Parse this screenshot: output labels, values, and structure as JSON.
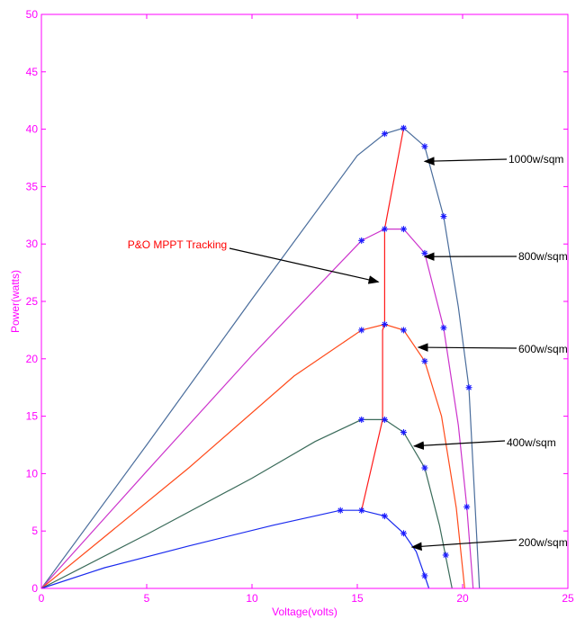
{
  "chart_data": {
    "type": "line",
    "xlabel": "Voltage(volts)",
    "ylabel": "Power(watts)",
    "xlim": [
      0,
      25
    ],
    "ylim": [
      0,
      50
    ],
    "xticks": [
      0,
      5,
      10,
      15,
      20,
      25
    ],
    "yticks": [
      0,
      5,
      10,
      15,
      20,
      25,
      30,
      35,
      40,
      45,
      50
    ],
    "grid": false,
    "axis_color": "#ff00ff",
    "series": [
      {
        "name": "1000w/sqm",
        "color": "#4a6d9c",
        "x": [
          0,
          5,
          10,
          15,
          16.3,
          17.2,
          18.2,
          19.1,
          19.8,
          20.3,
          20.8
        ],
        "y": [
          0,
          12.5,
          25.2,
          37.7,
          39.6,
          40.1,
          38.5,
          32.4,
          24.5,
          17.5,
          0
        ],
        "markers_x": [
          16.3,
          17.2,
          18.2,
          19.1,
          20.3
        ],
        "markers_y": [
          39.6,
          40.1,
          38.5,
          32.4,
          17.5
        ]
      },
      {
        "name": "800w/sqm",
        "color": "#cc33cc",
        "x": [
          0,
          5,
          10,
          15.2,
          16.3,
          17.2,
          18.2,
          19.1,
          19.8,
          20.2,
          20.5
        ],
        "y": [
          0,
          10.2,
          20.3,
          30.3,
          31.3,
          31.3,
          29.2,
          22.7,
          14.2,
          7.1,
          0
        ],
        "markers_x": [
          15.2,
          16.3,
          17.2,
          18.2,
          19.1,
          20.2
        ],
        "markers_y": [
          30.3,
          31.3,
          31.3,
          29.2,
          22.7,
          7.1
        ]
      },
      {
        "name": "600w/sqm",
        "color": "#ff4a1a",
        "x": [
          0,
          3,
          7,
          12,
          15.2,
          16.3,
          17.2,
          18.2,
          19,
          19.7,
          20.1
        ],
        "y": [
          0,
          4.5,
          10.5,
          18.5,
          22.5,
          23.0,
          22.5,
          19.8,
          15,
          7,
          0
        ],
        "markers_x": [
          15.2,
          16.3,
          17.2,
          18.2
        ],
        "markers_y": [
          22.5,
          23.0,
          22.5,
          19.8
        ]
      },
      {
        "name": "400w/sqm",
        "color": "#3a6b5a",
        "x": [
          0,
          5,
          10,
          13,
          15.2,
          16.3,
          17.2,
          18.2,
          18.9,
          19.5
        ],
        "y": [
          0,
          4.7,
          9.6,
          12.8,
          14.7,
          14.7,
          13.6,
          10.5,
          5.5,
          0
        ],
        "markers_x": [
          15.2,
          16.3,
          17.2,
          18.2,
          19.2
        ],
        "markers_y": [
          14.7,
          14.7,
          13.6,
          10.5,
          2.9
        ]
      },
      {
        "name": "200w/sqm",
        "color": "#1a2aee",
        "x": [
          0,
          3,
          7,
          11,
          14.2,
          15.2,
          16.3,
          17.2,
          17.8,
          18.2,
          18.4
        ],
        "y": [
          0,
          1.8,
          3.7,
          5.5,
          6.8,
          6.8,
          6.3,
          4.8,
          3.2,
          1.1,
          0
        ],
        "markers_x": [
          14.2,
          15.2,
          16.3,
          17.2,
          18.2
        ],
        "markers_y": [
          6.8,
          6.8,
          6.3,
          4.8,
          1.1
        ]
      },
      {
        "name": "P&O MPPT Tracking",
        "color": "#ff1a1a",
        "x": [
          15.2,
          16.2,
          16.2,
          16.3,
          16.3,
          17.2
        ],
        "y": [
          6.8,
          14.7,
          22.5,
          23.0,
          31.3,
          40.1
        ],
        "markers_x": [],
        "markers_y": []
      }
    ],
    "annotations": [
      {
        "text": "1000w/sqm",
        "color": "#000000",
        "arrow_to": [
          18.2,
          37.2
        ]
      },
      {
        "text": "800w/sqm",
        "color": "#000000",
        "arrow_to": [
          18.2,
          28.9
        ]
      },
      {
        "text": "600w/sqm",
        "color": "#000000",
        "arrow_to": [
          17.9,
          21.0
        ]
      },
      {
        "text": "400w/sqm",
        "color": "#000000",
        "arrow_to": [
          17.7,
          12.4
        ]
      },
      {
        "text": "200w/sqm",
        "color": "#000000",
        "arrow_to": [
          17.6,
          3.6
        ]
      },
      {
        "text": "P&O MPPT Tracking",
        "color": "#ff0000",
        "arrow_to": [
          16.0,
          26.7
        ]
      }
    ]
  }
}
